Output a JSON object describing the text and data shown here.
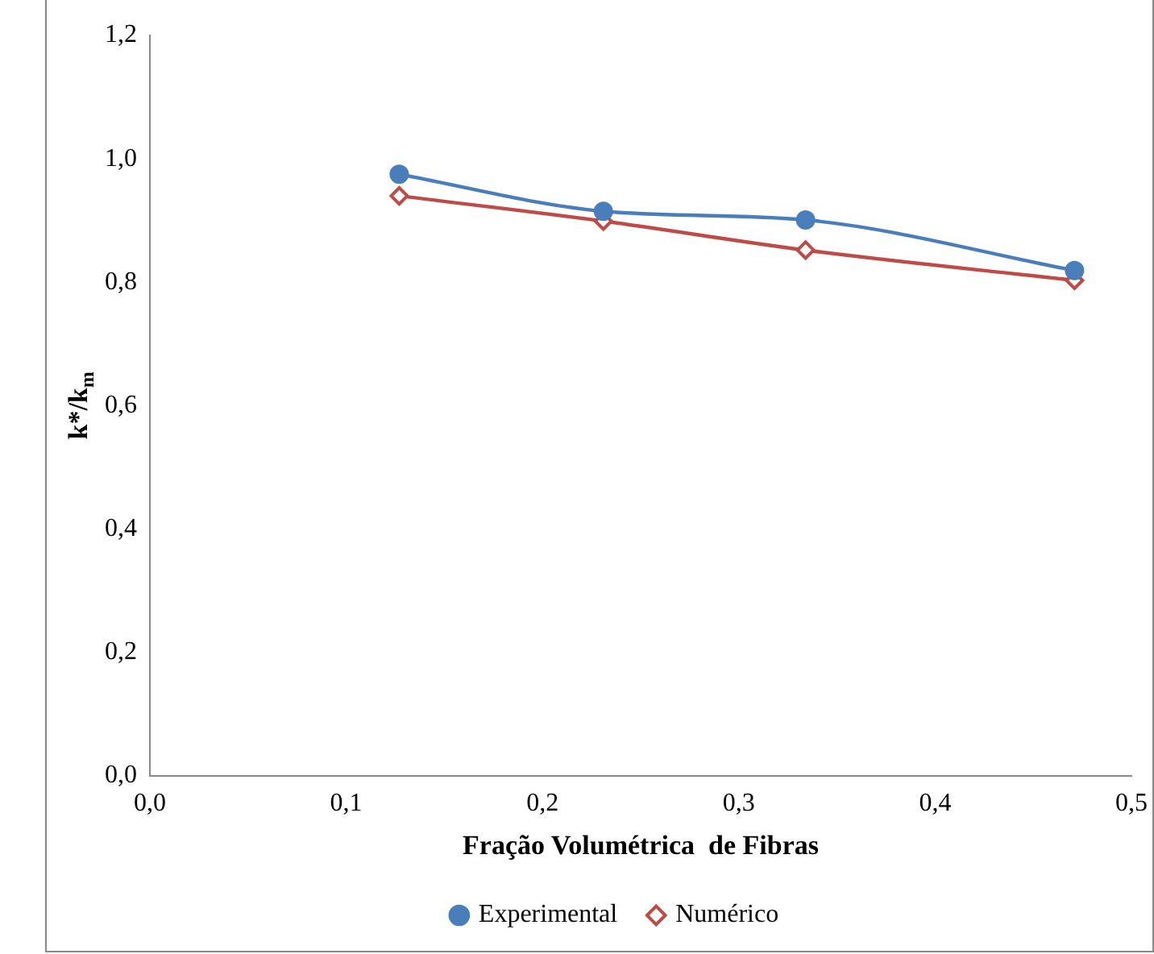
{
  "chart_data": {
    "type": "line",
    "xlabel": "Fração Volumétrica  de Fibras",
    "ylabel": "k*/k$_{m}$",
    "series": [
      {
        "name": "Experimental",
        "color": "#4a7ebb",
        "marker": "circle",
        "x": [
          0.127,
          0.231,
          0.334,
          0.471
        ],
        "values": [
          0.975,
          0.915,
          0.901,
          0.819
        ]
      },
      {
        "name": "Numérico",
        "color": "#be4b48",
        "marker": "diamond",
        "x": [
          0.127,
          0.231,
          0.334,
          0.471
        ],
        "values": [
          0.94,
          0.899,
          0.852,
          0.803
        ]
      }
    ],
    "xlim": [
      0,
      0.5
    ],
    "xticks": [
      {
        "value": 0,
        "label": "0,0"
      },
      {
        "value": 0.1,
        "label": "0,1"
      },
      {
        "value": 0.2,
        "label": "0,2"
      },
      {
        "value": 0.3,
        "label": "0,3"
      },
      {
        "value": 0.4,
        "label": "0,4"
      },
      {
        "value": 0.5,
        "label": "0,5"
      }
    ],
    "ylim": [
      0,
      1.2
    ],
    "yticks": [
      {
        "value": 0,
        "label": "0,0"
      },
      {
        "value": 0.2,
        "label": "0,2"
      },
      {
        "value": 0.4,
        "label": "0,4"
      },
      {
        "value": 0.6,
        "label": "0,6"
      },
      {
        "value": 0.8,
        "label": "0,8"
      },
      {
        "value": 1,
        "label": "1,0"
      },
      {
        "value": 1.2,
        "label": "1,2"
      }
    ],
    "grid": false,
    "legend": "bottom"
  }
}
